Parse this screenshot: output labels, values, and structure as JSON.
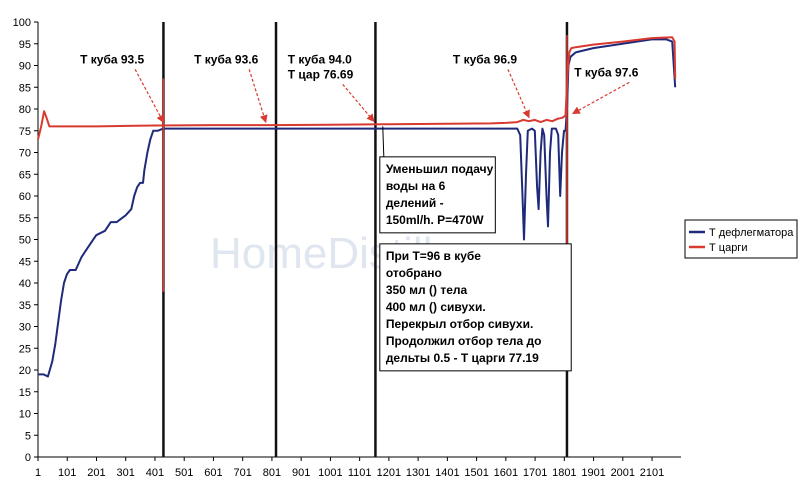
{
  "watermark": "HomeDistiller.ru",
  "chart_data": {
    "type": "line",
    "xlim": [
      1,
      2200
    ],
    "ylim": [
      0,
      100
    ],
    "x_ticks": [
      1,
      101,
      201,
      301,
      401,
      501,
      601,
      701,
      801,
      901,
      1001,
      1101,
      1201,
      1301,
      1401,
      1501,
      1601,
      1701,
      1801,
      1901,
      2001,
      2101
    ],
    "y_ticks": [
      0,
      5,
      10,
      15,
      20,
      25,
      30,
      35,
      40,
      45,
      50,
      55,
      60,
      65,
      70,
      75,
      80,
      85,
      90,
      95,
      100
    ],
    "grid": false,
    "legend_position": "right",
    "series": [
      {
        "name": "Т дефлегматора",
        "color": "#1f2a7a",
        "points": [
          [
            1,
            19
          ],
          [
            20,
            19
          ],
          [
            35,
            18.5
          ],
          [
            50,
            22
          ],
          [
            60,
            26
          ],
          [
            70,
            31
          ],
          [
            80,
            36
          ],
          [
            90,
            40
          ],
          [
            100,
            42
          ],
          [
            110,
            43
          ],
          [
            130,
            43
          ],
          [
            150,
            46
          ],
          [
            170,
            48
          ],
          [
            200,
            51
          ],
          [
            230,
            52
          ],
          [
            250,
            54
          ],
          [
            270,
            54
          ],
          [
            290,
            55
          ],
          [
            300,
            55.5
          ],
          [
            320,
            57
          ],
          [
            330,
            60
          ],
          [
            340,
            62
          ],
          [
            350,
            63
          ],
          [
            360,
            63
          ],
          [
            365,
            66
          ],
          [
            375,
            70
          ],
          [
            385,
            73
          ],
          [
            395,
            75
          ],
          [
            410,
            75
          ],
          [
            430,
            75.5
          ],
          [
            600,
            75.5
          ],
          [
            800,
            75.5
          ],
          [
            1000,
            75.5
          ],
          [
            1200,
            75.5
          ],
          [
            1400,
            75.5
          ],
          [
            1640,
            75.5
          ],
          [
            1650,
            74
          ],
          [
            1658,
            60
          ],
          [
            1663,
            50
          ],
          [
            1670,
            65
          ],
          [
            1676,
            75
          ],
          [
            1690,
            75.5
          ],
          [
            1700,
            75
          ],
          [
            1708,
            62
          ],
          [
            1713,
            57
          ],
          [
            1720,
            70
          ],
          [
            1726,
            75.5
          ],
          [
            1732,
            74
          ],
          [
            1740,
            60
          ],
          [
            1745,
            53
          ],
          [
            1752,
            70
          ],
          [
            1758,
            75.5
          ],
          [
            1772,
            75.5
          ],
          [
            1780,
            74
          ],
          [
            1787,
            60
          ],
          [
            1793,
            70
          ],
          [
            1800,
            75
          ],
          [
            1805,
            75
          ],
          [
            1810,
            80
          ],
          [
            1815,
            90
          ],
          [
            1822,
            92
          ],
          [
            1840,
            93
          ],
          [
            1900,
            94
          ],
          [
            2000,
            95
          ],
          [
            2100,
            96
          ],
          [
            2150,
            96
          ],
          [
            2170,
            95.5
          ],
          [
            2180,
            85
          ]
        ]
      },
      {
        "name": "Т царги",
        "color": "#d93a30",
        "points": [
          [
            1,
            73
          ],
          [
            12,
            76
          ],
          [
            22,
            79.5
          ],
          [
            30,
            78
          ],
          [
            40,
            76
          ],
          [
            60,
            76
          ],
          [
            100,
            76
          ],
          [
            200,
            76
          ],
          [
            400,
            76.2
          ],
          [
            600,
            76.3
          ],
          [
            800,
            76.3
          ],
          [
            1000,
            76.4
          ],
          [
            1200,
            76.5
          ],
          [
            1400,
            76.6
          ],
          [
            1550,
            76.7
          ],
          [
            1600,
            76.8
          ],
          [
            1640,
            77
          ],
          [
            1660,
            77.5
          ],
          [
            1680,
            77.2
          ],
          [
            1700,
            77.5
          ],
          [
            1720,
            77
          ],
          [
            1740,
            77.5
          ],
          [
            1760,
            77.2
          ],
          [
            1780,
            77.8
          ],
          [
            1795,
            78
          ],
          [
            1805,
            78.5
          ],
          [
            1812,
            88
          ],
          [
            1818,
            93
          ],
          [
            1825,
            94
          ],
          [
            1840,
            94.2
          ],
          [
            1900,
            94.8
          ],
          [
            2000,
            95.5
          ],
          [
            2100,
            96.3
          ],
          [
            2170,
            96.5
          ],
          [
            2178,
            95.5
          ],
          [
            2180,
            87
          ]
        ]
      }
    ],
    "spikes": [
      {
        "x": 430,
        "y_min": 38,
        "y_max": 87
      },
      {
        "x": 1810,
        "y_min": 38,
        "y_max": 97
      }
    ],
    "vertical_markers": [
      430,
      815,
      1155,
      1810
    ],
    "annotations": [
      {
        "lines": [
          "Т куба 93.5"
        ],
        "text_x": 145,
        "text_y": 90.5,
        "arrow_to": [
          430,
          76.5
        ]
      },
      {
        "lines": [
          "Т куба 93.6"
        ],
        "text_x": 535,
        "text_y": 90.5,
        "arrow_to": [
          780,
          76.5
        ]
      },
      {
        "lines": [
          "Т куба 94.0",
          "Т цар 76.69"
        ],
        "text_x": 855,
        "text_y": 90.5,
        "arrow_to": [
          1150,
          76.7
        ]
      },
      {
        "lines": [
          "Т куба 96.9"
        ],
        "text_x": 1420,
        "text_y": 90.5,
        "arrow_to": [
          1680,
          77.6
        ]
      },
      {
        "lines": [
          "Т куба 97.6"
        ],
        "text_x": 1835,
        "text_y": 87.5,
        "arrow_to": [
          1830,
          78.5
        ]
      },
      {
        "lines": [
          "Уменьшил подачу",
          "воды на 6",
          "делений -",
          "150ml/h. P=470W"
        ],
        "box": true,
        "box_x": 1170,
        "box_y": 69,
        "arrow_to": [
          1180,
          76
        ]
      },
      {
        "lines": [
          "При Т=96 в кубе",
          "отобрано",
          "350 мл () тела",
          "400 мл () сивухи.",
          "Перекрыл отбор сивухи.",
          "Продолжил отбор тела до",
          "дельты 0.5 - Т царги 77.19"
        ],
        "box": true,
        "box_x": 1170,
        "box_y": 49,
        "arrow_to": null
      }
    ]
  }
}
